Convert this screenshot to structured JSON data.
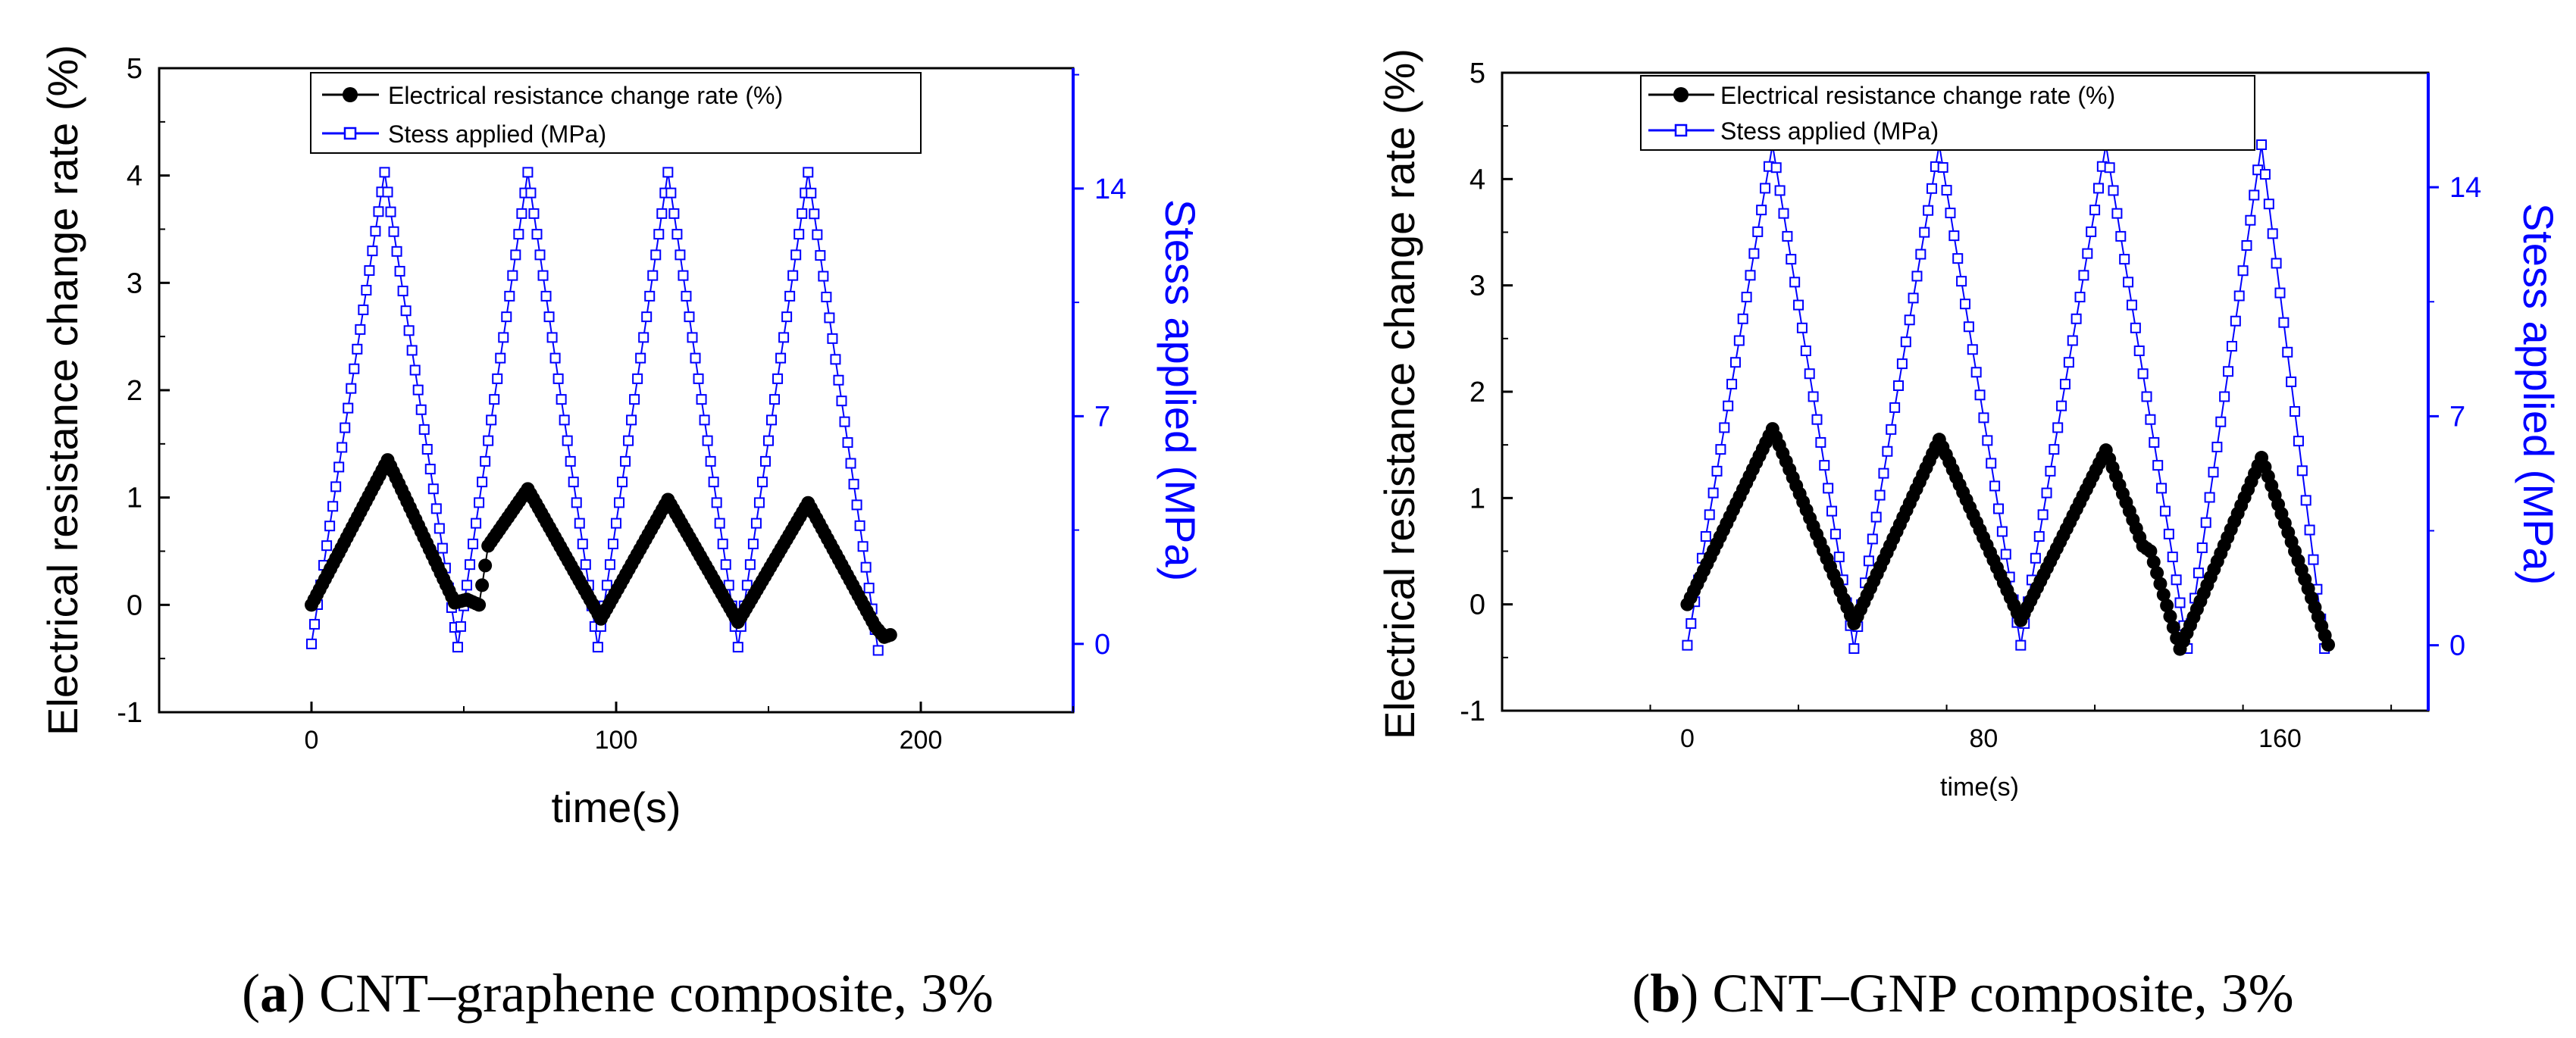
{
  "chart_data": [
    {
      "type": "line",
      "caption_letter": "a",
      "caption_text": " CNT–graphene composite, 3%",
      "xlabel": "time(s)",
      "ylabel": "Electrical resistance change rate (%)",
      "ylabel2": "Stess applied (MPa)",
      "xlim": [
        -50,
        250
      ],
      "ylim": [
        -1,
        5
      ],
      "ylim2": [
        -2.1,
        17.7
      ],
      "xticks": [
        0,
        100,
        200
      ],
      "xtick_labels": [
        "0",
        "100",
        "200"
      ],
      "yticks": [
        -1,
        0,
        1,
        2,
        3,
        4,
        5
      ],
      "ytick_labels": [
        "-1",
        "0",
        "1",
        "2",
        "3",
        "4",
        "5"
      ],
      "yticks2": [
        0,
        7,
        14
      ],
      "ytick2_labels": [
        "0",
        "7",
        "14"
      ],
      "series": [
        {
          "name": "Electrical resistance change rate (%)",
          "axis": "left",
          "marker": "filled-circle",
          "color": "#000000",
          "x": [
            0,
            25,
            47,
            51,
            55,
            58,
            71,
            95,
            117,
            140,
            163,
            185,
            188,
            190
          ],
          "y": [
            0,
            1.35,
            0.02,
            0.05,
            0.0,
            0.55,
            1.08,
            -0.13,
            0.98,
            -0.16,
            0.95,
            -0.2,
            -0.3,
            -0.28
          ]
        },
        {
          "name": "Stess applied (MPa)",
          "axis": "right",
          "marker": "open-square",
          "color": "#0000ff",
          "x": [
            0,
            24,
            48,
            71,
            94,
            117,
            140,
            163,
            186
          ],
          "y": [
            0,
            14.5,
            -0.1,
            14.5,
            -0.1,
            14.5,
            -0.1,
            14.5,
            -0.2
          ]
        }
      ],
      "legend": [
        "Electrical resistance change rate (%)",
        "Stess applied (MPa)"
      ]
    },
    {
      "type": "line",
      "caption_letter": "b",
      "caption_text": " CNT–GNP composite, 3%",
      "xlabel": "time(s)",
      "ylabel": "Electrical resistance change rate (%)",
      "ylabel2": "Stess applied (MPa)",
      "xlim": [
        -50,
        200
      ],
      "ylim": [
        -1,
        5
      ],
      "ylim2": [
        -2.0,
        17.5
      ],
      "xticks": [
        0,
        80,
        160
      ],
      "xtick_labels": [
        "0",
        "80",
        "160"
      ],
      "yticks": [
        -1,
        0,
        1,
        2,
        3,
        4,
        5
      ],
      "ytick_labels": [
        "-1",
        "0",
        "1",
        "2",
        "3",
        "4",
        "5"
      ],
      "yticks2": [
        0,
        7,
        14
      ],
      "ytick2_labels": [
        "0",
        "7",
        "14"
      ],
      "series": [
        {
          "name": "Electrical resistance change rate (%)",
          "axis": "left",
          "marker": "filled-circle",
          "color": "#000000",
          "x": [
            0,
            23,
            45,
            68,
            90,
            113,
            123,
            125,
            133,
            155,
            173
          ],
          "y": [
            0,
            1.65,
            -0.18,
            1.55,
            -0.15,
            1.45,
            0.55,
            0.5,
            -0.42,
            1.38,
            -0.38
          ]
        },
        {
          "name": "Stess applied (MPa)",
          "axis": "right",
          "marker": "open-square",
          "color": "#0000ff",
          "x": [
            0,
            23,
            45,
            68,
            90,
            113,
            135,
            155,
            172
          ],
          "y": [
            0,
            15.3,
            -0.1,
            15.3,
            0,
            15.3,
            -0.1,
            15.3,
            -0.1
          ]
        }
      ],
      "legend": [
        "Electrical resistance change rate (%)",
        "Stess applied (MPa)"
      ]
    }
  ]
}
